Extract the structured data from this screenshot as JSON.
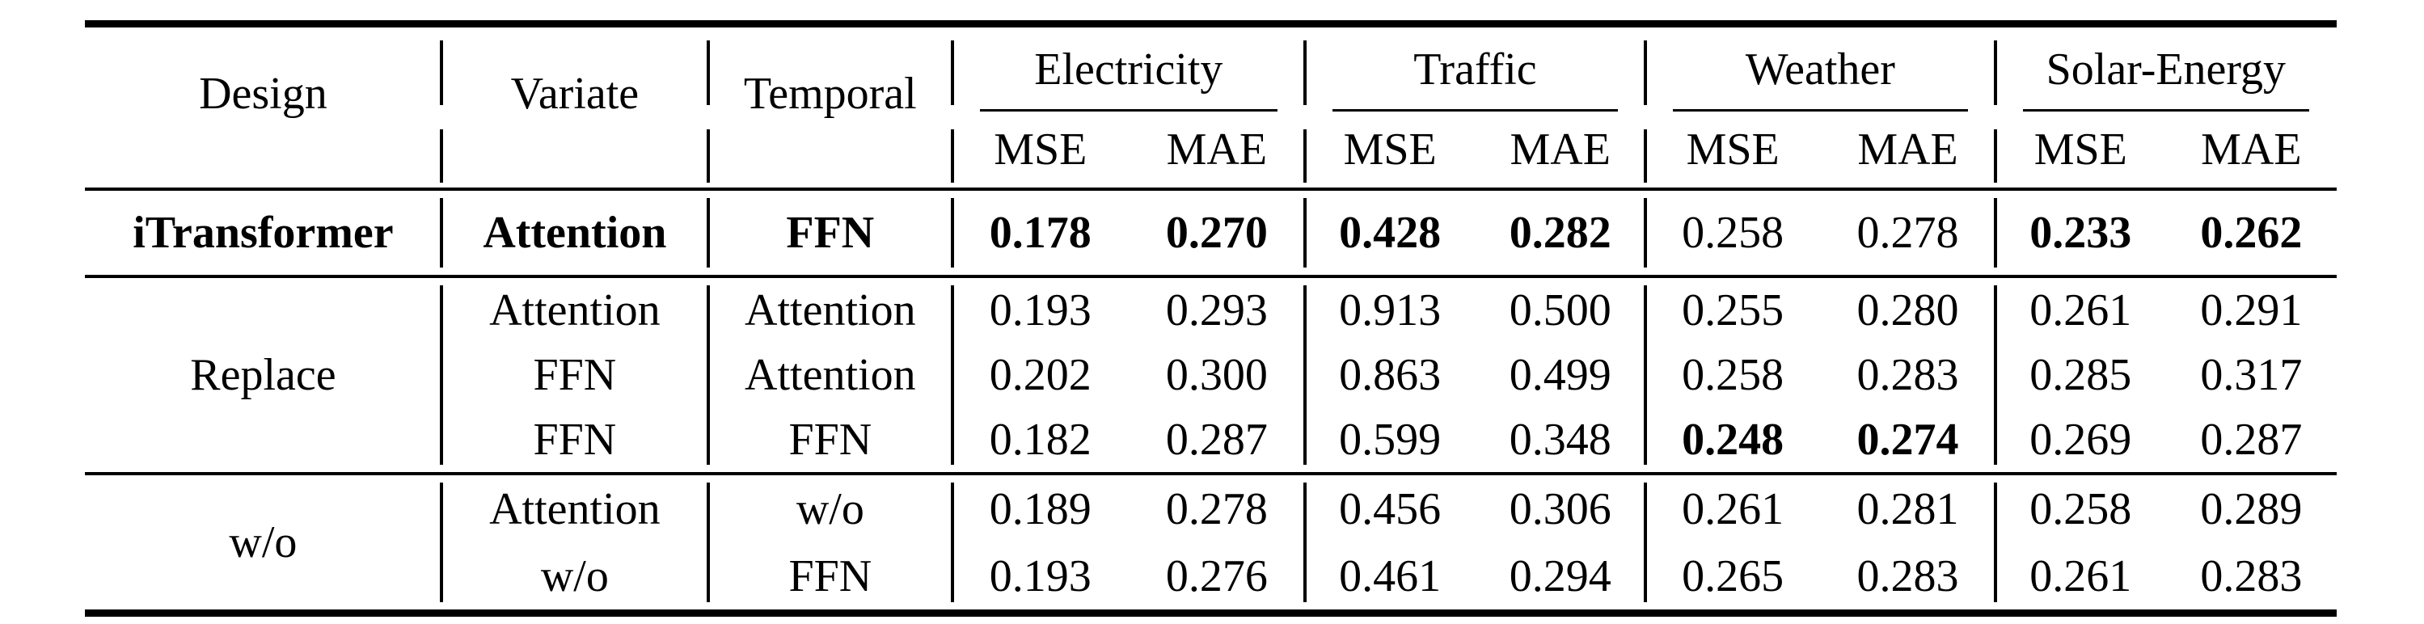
{
  "colors": {
    "text": "#000000",
    "background": "#ffffff",
    "rule": "#000000"
  },
  "table": {
    "header": {
      "design": "Design",
      "variate": "Variate",
      "temporal": "Temporal",
      "mse": "MSE",
      "mae": "MAE",
      "datasets": [
        "Electricity",
        "Traffic",
        "Weather",
        "Solar-Energy"
      ]
    },
    "sections": [
      {
        "design": "iTransformer",
        "rows": [
          {
            "variate": "Attention",
            "temporal": "FFN",
            "values": [
              "0.178",
              "0.270",
              "0.428",
              "0.282",
              "0.258",
              "0.278",
              "0.233",
              "0.262"
            ]
          }
        ]
      },
      {
        "design": "Replace",
        "rows": [
          {
            "variate": "Attention",
            "temporal": "Attention",
            "values": [
              "0.193",
              "0.293",
              "0.913",
              "0.500",
              "0.255",
              "0.280",
              "0.261",
              "0.291"
            ]
          },
          {
            "variate": "FFN",
            "temporal": "Attention",
            "values": [
              "0.202",
              "0.300",
              "0.863",
              "0.499",
              "0.258",
              "0.283",
              "0.285",
              "0.317"
            ]
          },
          {
            "variate": "FFN",
            "temporal": "FFN",
            "values": [
              "0.182",
              "0.287",
              "0.599",
              "0.348",
              "0.248",
              "0.274",
              "0.269",
              "0.287"
            ]
          }
        ]
      },
      {
        "design": "w/o",
        "rows": [
          {
            "variate": "Attention",
            "temporal": "w/o",
            "values": [
              "0.189",
              "0.278",
              "0.456",
              "0.306",
              "0.261",
              "0.281",
              "0.258",
              "0.289"
            ]
          },
          {
            "variate": "w/o",
            "temporal": "FFN",
            "values": [
              "0.193",
              "0.276",
              "0.461",
              "0.294",
              "0.265",
              "0.283",
              "0.261",
              "0.283"
            ]
          }
        ]
      }
    ]
  }
}
